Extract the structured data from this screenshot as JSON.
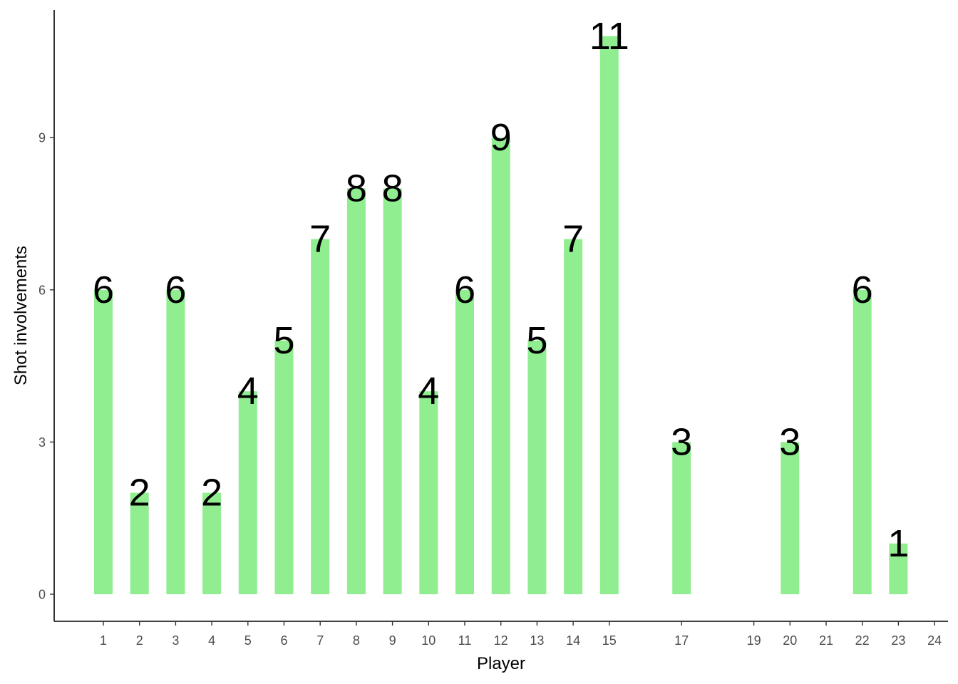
{
  "chart_data": {
    "type": "bar",
    "xlabel": "Player",
    "ylabel": "Shot involvements",
    "bar_color": "#90EE90",
    "label_color": "#000000",
    "axis_color": "#000000",
    "tick_label_color": "#4D4D4D",
    "grid": false,
    "legend": "none",
    "xlim": [
      0,
      24
    ],
    "ylim": [
      0,
      11
    ],
    "x_ticks": [
      1,
      2,
      3,
      4,
      5,
      6,
      7,
      8,
      9,
      10,
      11,
      12,
      13,
      14,
      15,
      17,
      19,
      20,
      21,
      22,
      23,
      24
    ],
    "y_ticks": [
      0,
      3,
      6,
      9
    ],
    "x": [
      1,
      2,
      3,
      4,
      5,
      6,
      7,
      8,
      9,
      10,
      11,
      12,
      13,
      14,
      15,
      17,
      20,
      22,
      23
    ],
    "values": [
      6,
      2,
      6,
      2,
      4,
      5,
      7,
      8,
      8,
      4,
      6,
      9,
      5,
      7,
      11,
      3,
      3,
      6,
      1
    ]
  }
}
